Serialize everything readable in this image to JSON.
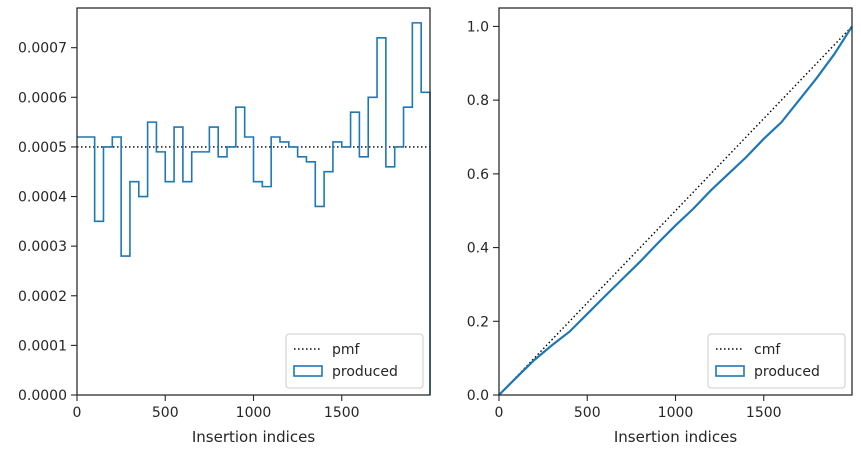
{
  "chart_data": [
    {
      "type": "step",
      "xlabel": "Insertion indices",
      "xlim": [
        0,
        2000
      ],
      "ylim": [
        0,
        0.00078
      ],
      "xticks": [
        0,
        500,
        1000,
        1500
      ],
      "xtick_labels": [
        "0",
        "500",
        "1000",
        "1500"
      ],
      "yticks": [
        0,
        0.0001,
        0.0002,
        0.0003,
        0.0004,
        0.0005,
        0.0006,
        0.0007
      ],
      "ytick_labels": [
        "0.0000",
        "0.0001",
        "0.0002",
        "0.0003",
        "0.0004",
        "0.0005",
        "0.0006",
        "0.0007"
      ],
      "legend_position": "lower-right",
      "series": [
        {
          "name": "pmf",
          "style": "dotted",
          "color": "#000000",
          "y": 0.0005
        },
        {
          "name": "produced",
          "style": "step",
          "color": "#1f77b4",
          "bin_edges": [
            0,
            100,
            150,
            200,
            250,
            300,
            350,
            400,
            450,
            500,
            550,
            600,
            650,
            700,
            750,
            800,
            850,
            900,
            950,
            1000,
            1050,
            1100,
            1150,
            1200,
            1250,
            1300,
            1350,
            1400,
            1450,
            1500,
            1550,
            1600,
            1650,
            1700,
            1750,
            1800,
            1850,
            1900,
            1950,
            2000
          ],
          "values": [
            0.00052,
            0.00035,
            0.0005,
            0.00052,
            0.00028,
            0.00043,
            0.0004,
            0.00055,
            0.00049,
            0.00043,
            0.00054,
            0.00043,
            0.00049,
            0.00049,
            0.00054,
            0.00048,
            0.0005,
            0.00058,
            0.00052,
            0.00043,
            0.00042,
            0.00052,
            0.00051,
            0.0005,
            0.00048,
            0.00047,
            0.00038,
            0.00045,
            0.00051,
            0.0005,
            0.00057,
            0.00048,
            0.0006,
            0.00072,
            0.00046,
            0.0005,
            0.00058,
            0.00075,
            0.00061
          ]
        }
      ]
    },
    {
      "type": "line",
      "xlabel": "Insertion indices",
      "xlim": [
        0,
        2000
      ],
      "ylim": [
        0,
        1.05
      ],
      "xticks": [
        0,
        500,
        1000,
        1500
      ],
      "xtick_labels": [
        "0",
        "500",
        "1000",
        "1500"
      ],
      "yticks": [
        0,
        0.2,
        0.4,
        0.6,
        0.8,
        1.0
      ],
      "ytick_labels": [
        "0.0",
        "0.2",
        "0.4",
        "0.6",
        "0.8",
        "1.0"
      ],
      "legend_position": "lower-right",
      "series": [
        {
          "name": "cmf",
          "style": "dotted",
          "color": "#000000",
          "x": [
            0,
            2000
          ],
          "y": [
            0,
            1.0
          ]
        },
        {
          "name": "produced",
          "style": "line",
          "color": "#1f77b4",
          "x": [
            0,
            100,
            200,
            300,
            400,
            500,
            600,
            700,
            800,
            900,
            1000,
            1100,
            1200,
            1300,
            1400,
            1500,
            1600,
            1700,
            1800,
            1900,
            2000
          ],
          "y": [
            0,
            0.048,
            0.095,
            0.135,
            0.172,
            0.22,
            0.268,
            0.315,
            0.362,
            0.412,
            0.46,
            0.505,
            0.555,
            0.6,
            0.645,
            0.695,
            0.74,
            0.8,
            0.86,
            0.925,
            1.0
          ]
        }
      ]
    }
  ]
}
